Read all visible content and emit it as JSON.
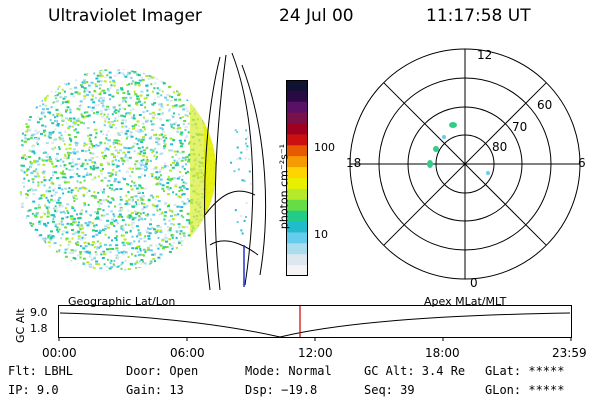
{
  "header": {
    "instrument": "Ultraviolet Imager",
    "date": "24 Jul 00",
    "time": "11:17:58 UT"
  },
  "colorbar": {
    "units": "photon cm⁻²s⁻¹",
    "ticks": [
      "100",
      "10"
    ],
    "colors": [
      "#111133",
      "#2a0a44",
      "#5a1066",
      "#7a104a",
      "#a00020",
      "#cc1010",
      "#e65a00",
      "#f59a00",
      "#ffd400",
      "#e8f000",
      "#b5ea2a",
      "#66dd44",
      "#22cc88",
      "#22bbcc",
      "#66ccee",
      "#aadcee",
      "#dde8ee",
      "#f4f4f4"
    ]
  },
  "polar_plot": {
    "labels": {
      "top": "12",
      "bottom": "0",
      "left": "18",
      "right": "6",
      "lat60": "60",
      "lat70": "70",
      "lat80": "80"
    }
  },
  "timeseries": {
    "left_caption": "Geographic Lat/Lon",
    "right_caption": "Apex MLat/MLT",
    "y_label": "GC Alt",
    "y_ticks": [
      "9.0",
      "1.8"
    ],
    "x_ticks": [
      "00:00",
      "06:00",
      "12:00",
      "18:00",
      "23:59"
    ],
    "marker_color": "#cc0000"
  },
  "info": {
    "row1": {
      "flt": "Flt: LBHL",
      "door": "Door: Open",
      "mode": "Mode: Normal",
      "gcalt": "GC Alt: 3.4 Re",
      "glat": "GLat: *****"
    },
    "row2": {
      "ip": "IP: 9.0",
      "gain": "Gain: 13",
      "dsp": "Dsp: −19.8",
      "seq": "Seq: 39",
      "glon": "GLon: *****"
    }
  }
}
